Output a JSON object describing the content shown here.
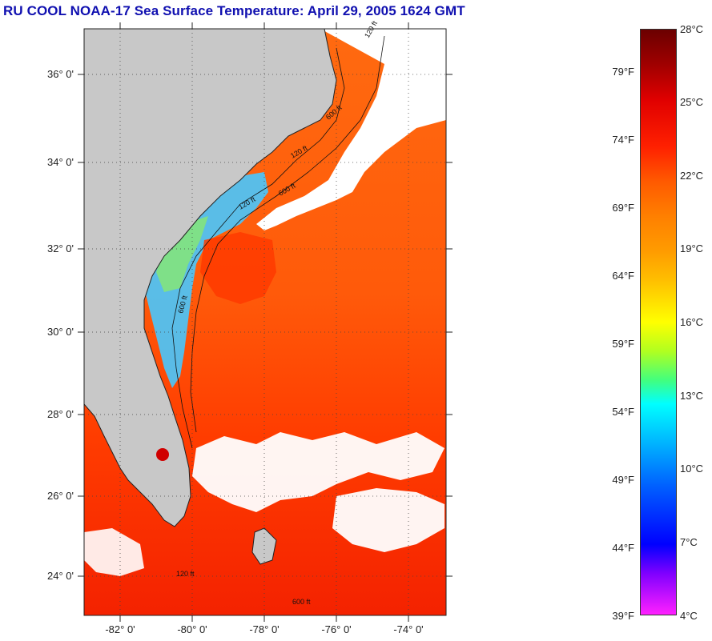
{
  "title": "RU COOL  NOAA-17  Sea Surface Temperature:  April 29, 2005 1624 GMT",
  "map": {
    "lat_labels": [
      "36° 0'",
      "34° 0'",
      "32° 0'",
      "30° 0'",
      "28° 0'",
      "26° 0'",
      "24° 0'"
    ],
    "lon_labels": [
      "-82° 0'",
      "-80° 0'",
      "-78° 0'",
      "-76° 0'",
      "-74° 0'"
    ],
    "isobath_labels": [
      "120 ft",
      "600 ft",
      "120 ft",
      "600 ft",
      "120 ft",
      "600 ft",
      "120 ft",
      "600 ft"
    ],
    "colors": {
      "land": "#c8c8c8",
      "cloud": "#ffffff",
      "warm_water": "#ff3a00",
      "gulf_stream": "#e81800",
      "cool_shelf": "#40c0ff"
    }
  },
  "colorbar": {
    "fahrenheit": [
      "79°F",
      "74°F",
      "69°F",
      "64°F",
      "59°F",
      "54°F",
      "49°F",
      "44°F",
      "39°F"
    ],
    "celsius": [
      "28°C",
      "25°C",
      "22°C",
      "19°C",
      "16°C",
      "13°C",
      "10°C",
      "7°C",
      "4°C"
    ]
  }
}
